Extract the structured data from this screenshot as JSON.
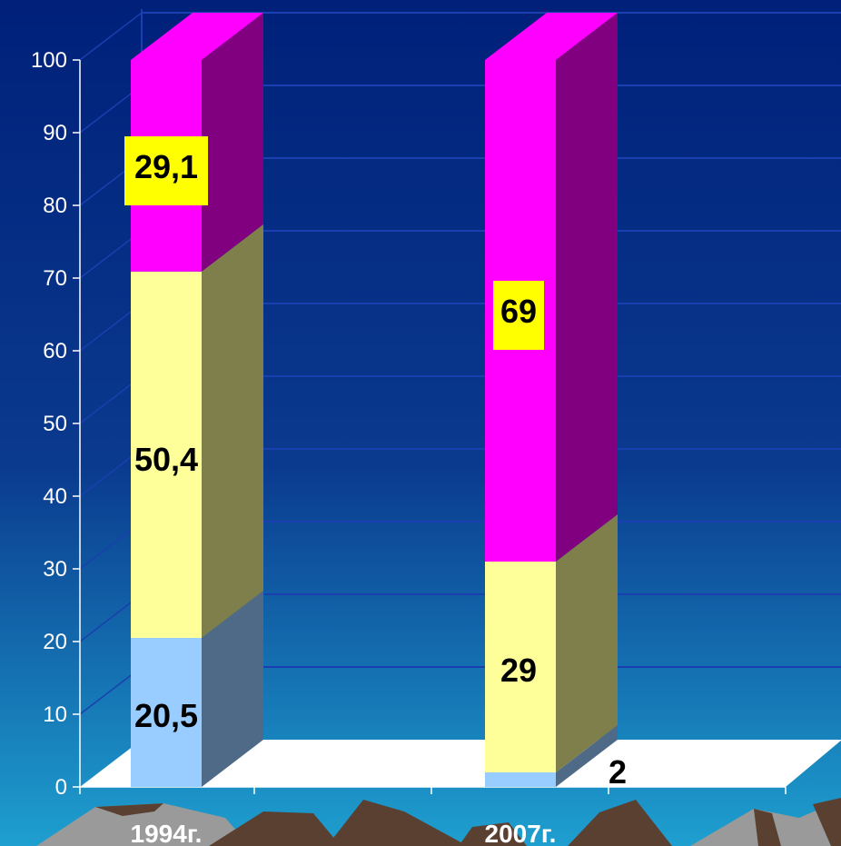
{
  "chart_data": {
    "type": "bar",
    "stacked": true,
    "three_d": true,
    "categories": [
      "1994г.",
      "2007г."
    ],
    "series": [
      {
        "values": [
          20.5,
          2
        ],
        "labels": [
          "20,5",
          "2"
        ],
        "color": "#99CCFF",
        "side_color": "#4F6A87"
      },
      {
        "values": [
          50.4,
          29
        ],
        "labels": [
          "50,4",
          "29"
        ],
        "color": "#FFFF99",
        "side_color": "#7F7F4C"
      },
      {
        "values": [
          29.1,
          69
        ],
        "labels": [
          "29,1",
          "69"
        ],
        "color": "#FF00FF",
        "side_color": "#800080"
      }
    ],
    "highlight_label_color": "#FFFF00",
    "yticks": [
      "0",
      "10",
      "20",
      "30",
      "40",
      "50",
      "60",
      "70",
      "80",
      "90",
      "100"
    ],
    "ylim": [
      0,
      100
    ],
    "grid": true,
    "title": "",
    "xlabel": "",
    "ylabel": ""
  },
  "colors": {
    "background_top": "#00207A",
    "background_bottom": "#1E9FCF",
    "floor": "#FFFFFF",
    "mountain": "#5A4030",
    "mountain_light": "#9A9A9A",
    "text": "#FFFFFF",
    "label_text": "#000000"
  }
}
